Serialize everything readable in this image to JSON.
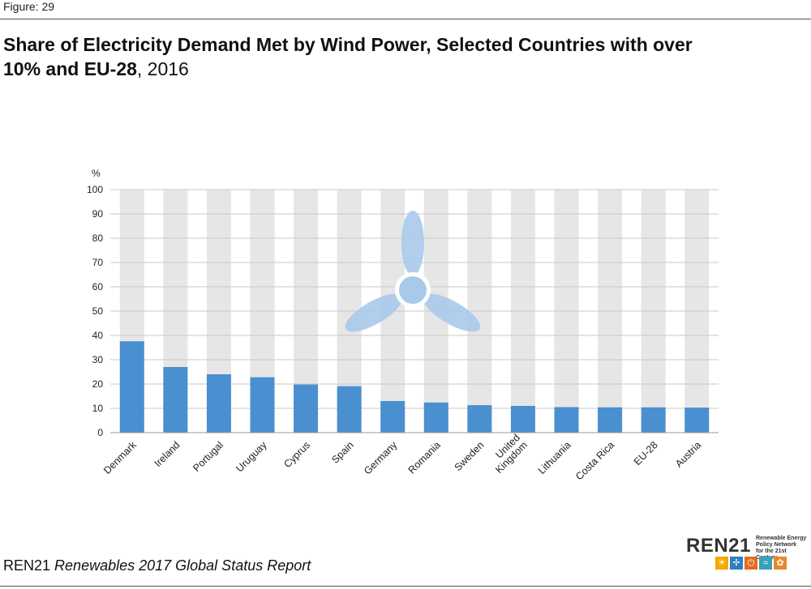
{
  "figure_label": "Figure: 29",
  "title_bold": "Share of Electricity Demand Met by Wind Power, Selected Countries with over 10% and EU-28",
  "title_year": ", 2016",
  "footer": {
    "org": "REN21",
    "report": "Renewables 2017 Global Status Report"
  },
  "logo": {
    "name": "REN21",
    "tagline_1": "Renewable Energy",
    "tagline_2": "Policy Network",
    "tagline_3": "for the 21st Century"
  },
  "colors": {
    "bar": "#4a8fd0",
    "background_column": "#e6e6e6",
    "grid": "#c8c8c8",
    "turbine": "#a9c9ea"
  },
  "chart_data": {
    "type": "bar",
    "title": "Share of Electricity Demand Met by Wind Power, Selected Countries with over 10% and EU-28, 2016",
    "ylabel": "%",
    "ylim": [
      0,
      100
    ],
    "yticks": [
      0,
      10,
      20,
      30,
      40,
      50,
      60,
      70,
      80,
      90,
      100
    ],
    "categories": [
      "Denmark",
      "Ireland",
      "Portugal",
      "Uruguay",
      "Cyprus",
      "Spain",
      "Germany",
      "Romania",
      "Sweden",
      "United Kingdom",
      "Lithuania",
      "Costa Rica",
      "EU-28",
      "Austria"
    ],
    "category_lines": [
      [
        "Denmark"
      ],
      [
        "Ireland"
      ],
      [
        "Portugal"
      ],
      [
        "Uruguay"
      ],
      [
        "Cyprus"
      ],
      [
        "Spain"
      ],
      [
        "Germany"
      ],
      [
        "Romania"
      ],
      [
        "Sweden"
      ],
      [
        "United",
        "Kingdom"
      ],
      [
        "Lithuania"
      ],
      [
        "Costa Rica"
      ],
      [
        "EU-28"
      ],
      [
        "Austria"
      ]
    ],
    "values": [
      37.6,
      27,
      24,
      22.8,
      19.8,
      19.1,
      13,
      12.4,
      11.3,
      11,
      10.5,
      10.4,
      10.4,
      10.3
    ],
    "grid": true
  }
}
